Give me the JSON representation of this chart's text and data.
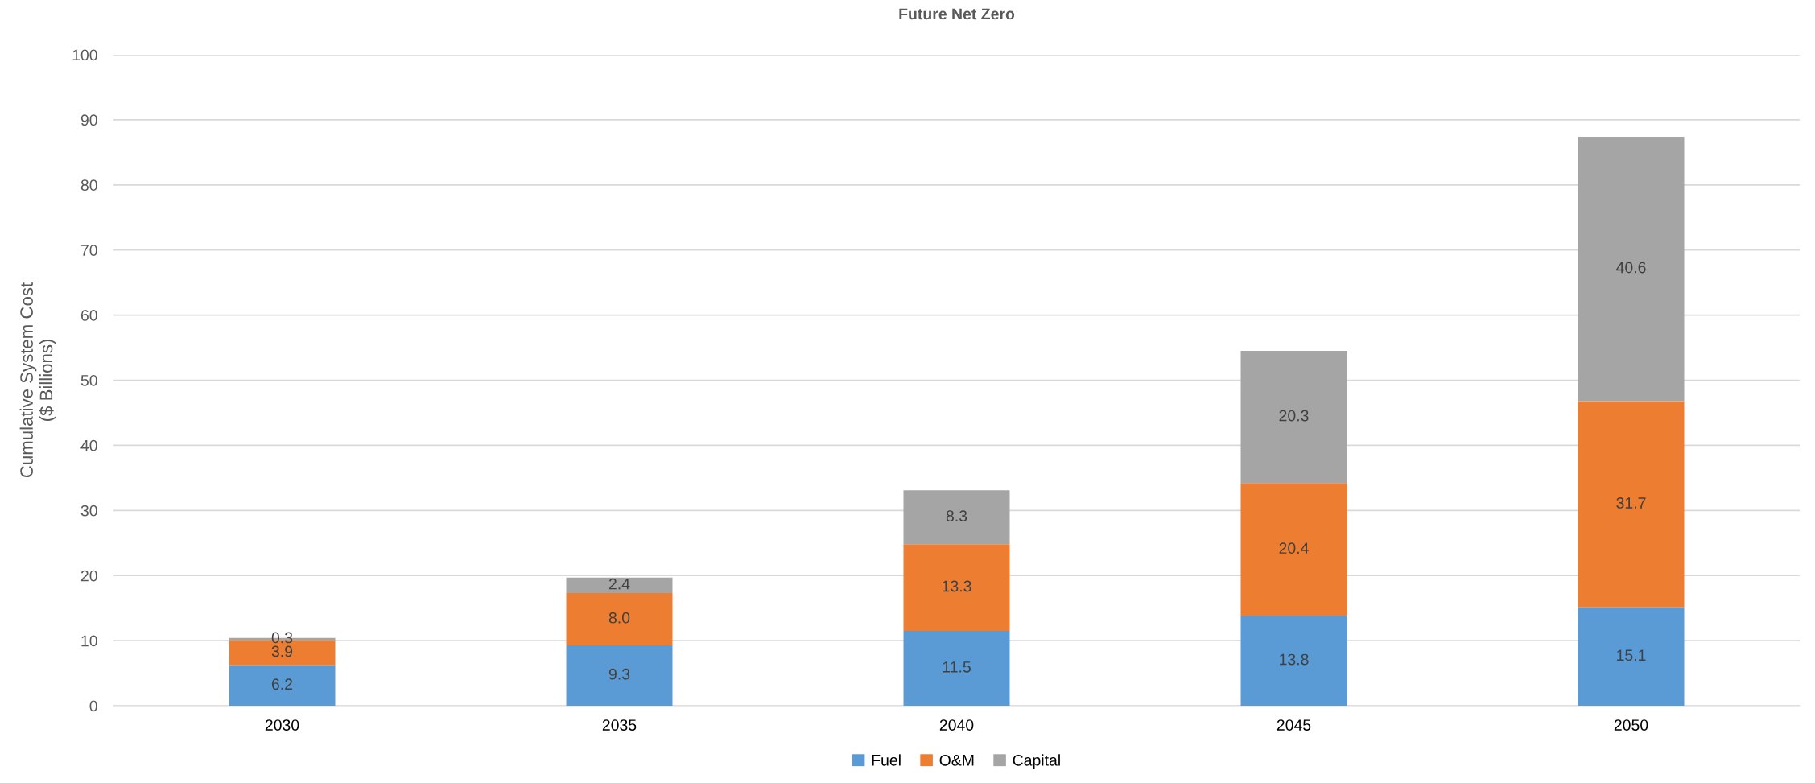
{
  "chart_data": {
    "type": "bar",
    "title": "Future Net Zero",
    "ylabel": "Cumulative System Cost\n($ Billions)",
    "categories": [
      "2030",
      "2035",
      "2040",
      "2045",
      "2050"
    ],
    "stacked": true,
    "series": [
      {
        "name": "Fuel",
        "color": "#5b9bd5",
        "values": [
          6.2,
          9.3,
          11.5,
          13.8,
          15.1
        ],
        "value_labels": [
          "6.2",
          "9.3",
          "11.5",
          "13.8",
          "15.1"
        ]
      },
      {
        "name": "O&M",
        "color": "#ed7d31",
        "values": [
          3.9,
          8.0,
          13.3,
          20.4,
          31.7
        ],
        "value_labels": [
          "3.9",
          "8.0",
          "13.3",
          "20.4",
          "31.7"
        ]
      },
      {
        "name": "Capital",
        "color": "#a5a5a5",
        "values": [
          0.3,
          2.4,
          8.3,
          20.3,
          40.6
        ],
        "value_labels": [
          "0.3",
          "2.4",
          "8.3",
          "20.3",
          "40.6"
        ]
      }
    ],
    "ylim": [
      0,
      100
    ],
    "yticks": [
      0,
      10,
      20,
      30,
      40,
      50,
      60,
      70,
      80,
      90,
      100
    ],
    "grid": "y",
    "legend": "bottom"
  }
}
